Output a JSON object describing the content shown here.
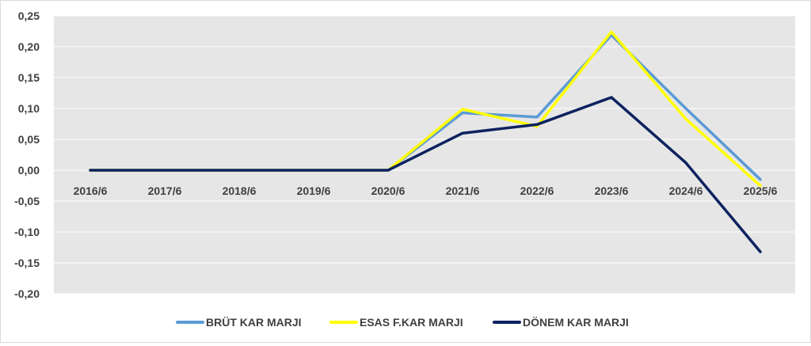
{
  "chart_data": {
    "type": "line",
    "title": "",
    "xlabel": "",
    "ylabel": "",
    "categories": [
      "2016/6",
      "2017/6",
      "2018/6",
      "2019/6",
      "2020/6",
      "2021/6",
      "2022/6",
      "2023/6",
      "2024/6",
      "2025/6"
    ],
    "y_tick_labels": [
      "0,25",
      "0,20",
      "0,15",
      "0,10",
      "0,05",
      "0,00",
      "-0,05",
      "-0,10",
      "-0,15",
      "-0,20"
    ],
    "ylim": [
      -0.2,
      0.25
    ],
    "y_tick_step": 0.05,
    "grid": true,
    "legend_position": "bottom",
    "plot_background": "#e6e6e6",
    "series": [
      {
        "name": "BRÜT KAR MARJI",
        "color": "#5b9bd5",
        "values": [
          0,
          0,
          0,
          0,
          0,
          0.093,
          0.086,
          0.219,
          0.1,
          -0.015
        ]
      },
      {
        "name": "ESAS F.KAR MARJI",
        "color": "#ffff00",
        "values": [
          0,
          0,
          0,
          0,
          0,
          0.099,
          0.071,
          0.224,
          0.083,
          -0.025
        ]
      },
      {
        "name": "DÖNEM KAR MARJI",
        "color": "#0d2260",
        "values": [
          0,
          0,
          0,
          0,
          0,
          0.06,
          0.074,
          0.118,
          0.012,
          -0.132
        ]
      }
    ]
  }
}
